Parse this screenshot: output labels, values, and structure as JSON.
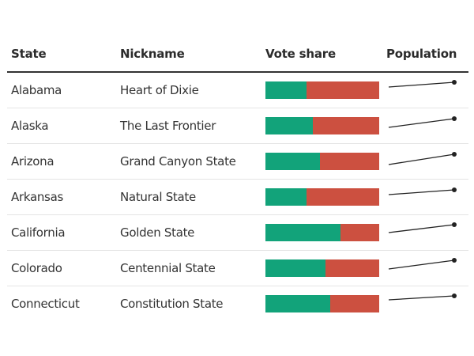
{
  "columns": {
    "state": "State",
    "nickname": "Nickname",
    "vote_share": "Vote share",
    "population": "Population"
  },
  "colors": {
    "dem": "#12a37a",
    "rep": "#cc5040",
    "line": "#222222"
  },
  "rows": [
    {
      "state": "Alabama",
      "nickname": "Heart of Dixie",
      "dem_share": 36,
      "pop_start_y": 18,
      "pop_end_y": 12
    },
    {
      "state": "Alaska",
      "nickname": "The Last Frontier",
      "dem_share": 42,
      "pop_start_y": 24,
      "pop_end_y": 13
    },
    {
      "state": "Arizona",
      "nickname": "Grand Canyon State",
      "dem_share": 48,
      "pop_start_y": 26,
      "pop_end_y": 13
    },
    {
      "state": "Arkansas",
      "nickname": "Natural State",
      "dem_share": 36,
      "pop_start_y": 19,
      "pop_end_y": 13
    },
    {
      "state": "California",
      "nickname": "Golden State",
      "dem_share": 66,
      "pop_start_y": 22,
      "pop_end_y": 12
    },
    {
      "state": "Colorado",
      "nickname": "Centennial State",
      "dem_share": 53,
      "pop_start_y": 23,
      "pop_end_y": 12
    },
    {
      "state": "Connecticut",
      "nickname": "Constitution State",
      "dem_share": 57,
      "pop_start_y": 17,
      "pop_end_y": 12
    }
  ],
  "chart_data": {
    "type": "table",
    "title": "",
    "columns": [
      "State",
      "Nickname",
      "Vote share",
      "Population"
    ],
    "categories": [
      "Alabama",
      "Alaska",
      "Arizona",
      "Arkansas",
      "California",
      "Colorado",
      "Connecticut"
    ],
    "nicknames": [
      "Heart of Dixie",
      "The Last Frontier",
      "Grand Canyon State",
      "Natural State",
      "Golden State",
      "Centennial State",
      "Constitution State"
    ],
    "series": [
      {
        "name": "Vote share (green, %)",
        "values": [
          36,
          42,
          48,
          36,
          66,
          53,
          57
        ]
      },
      {
        "name": "Vote share (red, %)",
        "values": [
          64,
          58,
          52,
          64,
          34,
          47,
          43
        ]
      },
      {
        "name": "Population trend (relative rise, sparkline)",
        "values": [
          6,
          11,
          13,
          6,
          10,
          11,
          5
        ]
      }
    ],
    "notes": "Vote share shown as stacked horizontal bars (green vs red); Population shown as upward-sloping sparklines ending in a dot."
  }
}
